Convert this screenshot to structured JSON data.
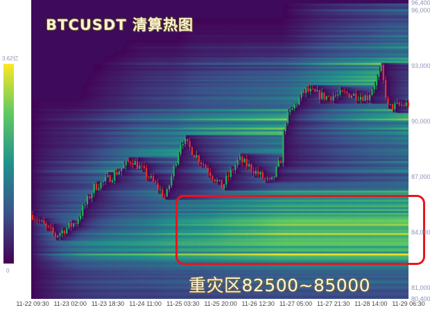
{
  "chart_data": {
    "type": "heatmap",
    "title": "BTCUSDT 清算热图",
    "annotation": "重灾区82500~85000",
    "highlight_zone": [
      82500,
      85000
    ],
    "ylim": [
      80400,
      96400
    ],
    "y_ticks": [
      "96,400",
      "96,000",
      "93,000",
      "90,000",
      "87,000",
      "84,000",
      "81,000",
      "80,400"
    ],
    "y_tick_values": [
      96400,
      96000,
      93000,
      90000,
      87000,
      84000,
      81000,
      80400
    ],
    "x_ticks": [
      "11-22 09:30",
      "11-23 02:00",
      "11-23 18:30",
      "11-24 11:00",
      "11-25 03:30",
      "11-25 20:00",
      "11-26 12:30",
      "11-27 05:00",
      "11-27 21:30",
      "11-28 14:00",
      "11-29 06:30"
    ],
    "colorbar": {
      "max_label": "3.62亿",
      "min_label": "0",
      "colormap": "viridis"
    },
    "price_series": [
      [
        "11-22 09:30",
        84960
      ],
      [
        "11-22 19:30",
        83840
      ],
      [
        "11-23 04:30",
        84590
      ],
      [
        "11-23 12:30",
        86460
      ],
      [
        "11-23 20:00",
        87020
      ],
      [
        "11-24 05:00",
        87960
      ],
      [
        "11-24 12:30",
        87020
      ],
      [
        "11-24 20:00",
        85900
      ],
      [
        "11-25 03:00",
        89090
      ],
      [
        "11-25 14:30",
        87400
      ],
      [
        "11-25 20:30",
        86460
      ],
      [
        "11-26 04:00",
        87960
      ],
      [
        "11-26 08:30",
        87590
      ],
      [
        "11-26 18:00",
        86650
      ],
      [
        "11-26 22:30",
        87960
      ],
      [
        "11-27 00:00",
        90030
      ],
      [
        "11-27 09:00",
        91710
      ],
      [
        "11-27 18:00",
        91340
      ],
      [
        "11-28 03:30",
        91520
      ],
      [
        "11-28 12:30",
        91340
      ],
      [
        "11-28 18:30",
        92840
      ],
      [
        "11-28 21:30",
        90780
      ],
      [
        "11-29 06:30",
        90960
      ]
    ],
    "colors": {
      "up": "#1fb45a",
      "down": "#e8322a",
      "background": "#3e0a5c",
      "zone_border": "#e8141c"
    }
  }
}
